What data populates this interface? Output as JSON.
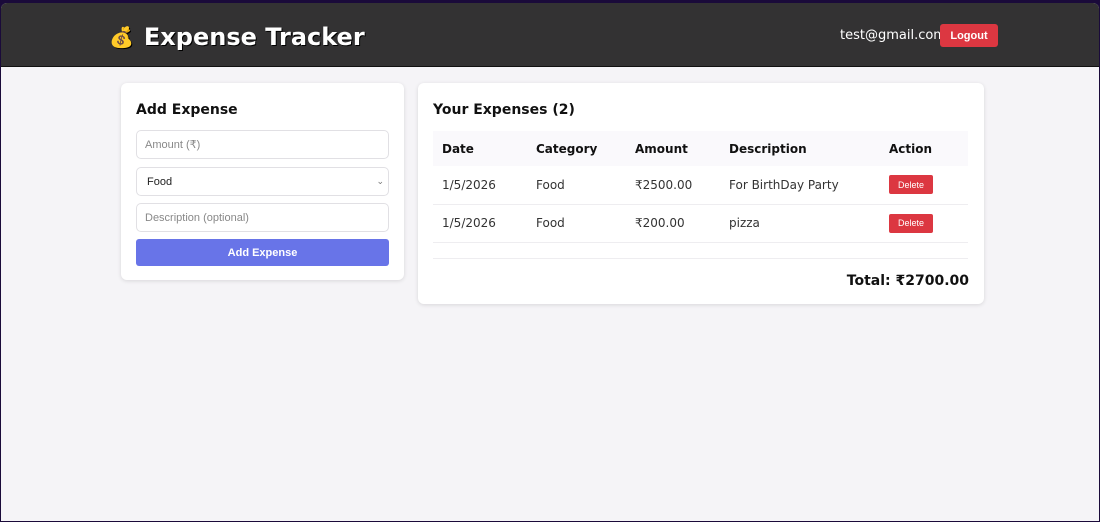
{
  "header": {
    "icon": "money-bag-icon",
    "title": "Expense Tracker",
    "email": "test@gmail.com",
    "logout_label": "Logout"
  },
  "add_form": {
    "title": "Add Expense",
    "amount_placeholder": "Amount (₹)",
    "category_value": "Food",
    "description_placeholder": "Description (optional)",
    "submit_label": "Add Expense"
  },
  "expenses": {
    "title": "Your Expenses (2)",
    "columns": [
      "Date",
      "Category",
      "Amount",
      "Description",
      "Action"
    ],
    "rows": [
      {
        "date": "1/5/2026",
        "category": "Food",
        "amount": "₹2500.00",
        "description": "For BirthDay Party",
        "action": "Delete"
      },
      {
        "date": "1/5/2026",
        "category": "Food",
        "amount": "₹200.00",
        "description": "pizza",
        "action": "Delete"
      }
    ],
    "total": "Total: ₹2700.00"
  },
  "colors": {
    "header_bg": "#333233",
    "danger": "#dc3741",
    "primary": "#6874e8",
    "page_bg": "#f5f4f7"
  }
}
